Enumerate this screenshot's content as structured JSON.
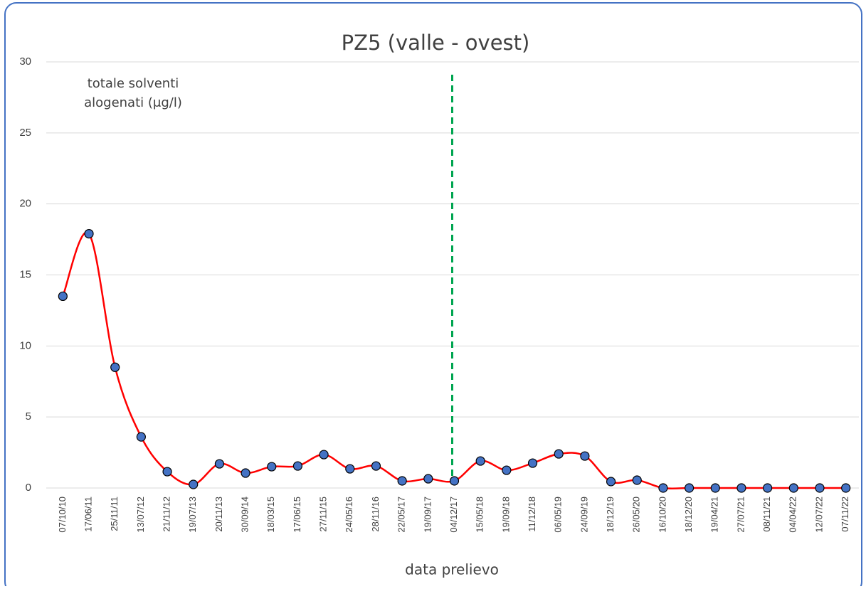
{
  "chart_data": {
    "type": "line",
    "title": "PZ5 (valle - ovest)",
    "y_label": [
      "totale solventi",
      "alogenati (μg/l)"
    ],
    "x_label": "data prelievo",
    "categories": [
      "07/10/10",
      "17/06/11",
      "25/11/11",
      "13/07/12",
      "21/11/12",
      "19/07/13",
      "20/11/13",
      "30/09/14",
      "18/03/15",
      "17/06/15",
      "27/11/15",
      "24/05/16",
      "28/11/16",
      "22/05/17",
      "19/09/17",
      "04/12/17",
      "15/05/18",
      "19/09/18",
      "11/12/18",
      "06/05/19",
      "24/09/19",
      "18/12/19",
      "26/05/20",
      "16/10/20",
      "18/12/20",
      "19/04/21",
      "27/07/21",
      "08/11/21",
      "04/04/22",
      "12/07/22",
      "07/11/22"
    ],
    "series": [
      {
        "color": "#ff0000",
        "marker_color": "#4472c4",
        "values": [
          13.5,
          17.9,
          8.5,
          3.6,
          1.15,
          0.25,
          1.7,
          1.05,
          1.5,
          1.55,
          2.35,
          1.35,
          1.55,
          0.5,
          0.65,
          0.5,
          1.9,
          1.25,
          1.75,
          2.4,
          2.25,
          0.45,
          0.55,
          0,
          0,
          0,
          0,
          0,
          0,
          0,
          0
        ]
      }
    ],
    "vline_category": 15,
    "vline_color": "#00a550",
    "ylim": [
      0,
      30
    ],
    "yticks": [
      0,
      5,
      10,
      15,
      20,
      25,
      30
    ],
    "grid": true
  }
}
